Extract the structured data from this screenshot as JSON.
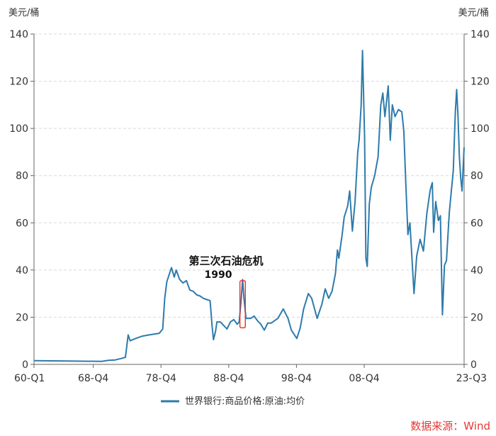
{
  "chart_data": {
    "type": "line",
    "y_unit_left": "美元/桶",
    "y_unit_right": "美元/桶",
    "ylim": [
      0,
      140
    ],
    "yticks": [
      "0",
      "20",
      "40",
      "60",
      "80",
      "100",
      "120",
      "140"
    ],
    "xlim": [
      1960.0,
      2023.5
    ],
    "x_ticks": [
      {
        "label": "60-Q1",
        "x": 1960.0
      },
      {
        "label": "68-Q4",
        "x": 1968.75
      },
      {
        "label": "78-Q4",
        "x": 1978.75
      },
      {
        "label": "88-Q4",
        "x": 1988.75
      },
      {
        "label": "98-Q4",
        "x": 1998.75
      },
      {
        "label": "08-Q4",
        "x": 2008.75
      },
      {
        "label": "23-Q3",
        "x": 2023.5
      }
    ],
    "grid": "horizontal-dashed",
    "legend_position": "bottom",
    "series": [
      {
        "name": "世界银行:商品价格:原油:均价",
        "color": "#2e7bab",
        "points": [
          [
            1960,
            1.6
          ],
          [
            1965,
            1.4
          ],
          [
            1970,
            1.3
          ],
          [
            1971,
            1.7
          ],
          [
            1972,
            1.9
          ],
          [
            1973.0,
            2.6
          ],
          [
            1973.5,
            3.0
          ],
          [
            1973.9,
            12.5
          ],
          [
            1974.2,
            10.0
          ],
          [
            1975,
            11.0
          ],
          [
            1976,
            12.0
          ],
          [
            1977,
            12.5
          ],
          [
            1978.5,
            13.2
          ],
          [
            1979.0,
            15.0
          ],
          [
            1979.3,
            28.0
          ],
          [
            1979.6,
            35.0
          ],
          [
            1980.0,
            38.5
          ],
          [
            1980.3,
            41.0
          ],
          [
            1980.7,
            37.0
          ],
          [
            1981.0,
            40.0
          ],
          [
            1981.5,
            36.0
          ],
          [
            1982.0,
            34.5
          ],
          [
            1982.5,
            35.5
          ],
          [
            1983.0,
            31.5
          ],
          [
            1983.5,
            31.0
          ],
          [
            1984.0,
            29.5
          ],
          [
            1984.5,
            29.0
          ],
          [
            1985.0,
            28.0
          ],
          [
            1985.5,
            27.5
          ],
          [
            1986.0,
            27.0
          ],
          [
            1986.3,
            16.0
          ],
          [
            1986.5,
            10.5
          ],
          [
            1986.8,
            14.0
          ],
          [
            1987.0,
            18.0
          ],
          [
            1987.5,
            18.0
          ],
          [
            1988.0,
            16.5
          ],
          [
            1988.5,
            15.0
          ],
          [
            1989.0,
            18.0
          ],
          [
            1989.5,
            19.0
          ],
          [
            1990.0,
            17.0
          ],
          [
            1990.3,
            18.0
          ],
          [
            1990.6,
            28.0
          ],
          [
            1990.8,
            36.0
          ],
          [
            1991.0,
            28.0
          ],
          [
            1991.3,
            19.5
          ],
          [
            1992.0,
            19.5
          ],
          [
            1992.5,
            20.5
          ],
          [
            1993.0,
            18.5
          ],
          [
            1993.5,
            17.0
          ],
          [
            1994.0,
            14.5
          ],
          [
            1994.5,
            17.5
          ],
          [
            1995.0,
            17.5
          ],
          [
            1996.0,
            19.5
          ],
          [
            1996.8,
            23.5
          ],
          [
            1997.5,
            19.5
          ],
          [
            1998.0,
            14.5
          ],
          [
            1998.8,
            11.0
          ],
          [
            1999.3,
            15.5
          ],
          [
            1999.8,
            23.5
          ],
          [
            2000.5,
            30.0
          ],
          [
            2001.0,
            28.0
          ],
          [
            2001.8,
            19.5
          ],
          [
            2002.5,
            25.5
          ],
          [
            2003.0,
            32.0
          ],
          [
            2003.5,
            28.0
          ],
          [
            2004.0,
            31.0
          ],
          [
            2004.5,
            38.5
          ],
          [
            2004.8,
            48.5
          ],
          [
            2005.0,
            45.0
          ],
          [
            2005.5,
            55.0
          ],
          [
            2005.8,
            62.5
          ],
          [
            2006.3,
            67.0
          ],
          [
            2006.6,
            73.5
          ],
          [
            2007.0,
            56.5
          ],
          [
            2007.4,
            69.0
          ],
          [
            2007.8,
            90.0
          ],
          [
            2008.0,
            95.0
          ],
          [
            2008.3,
            110.0
          ],
          [
            2008.5,
            133.0
          ],
          [
            2008.8,
            97.0
          ],
          [
            2009.0,
            45.0
          ],
          [
            2009.2,
            41.5
          ],
          [
            2009.5,
            68.0
          ],
          [
            2009.8,
            75.0
          ],
          [
            2010.3,
            80.0
          ],
          [
            2010.8,
            88.0
          ],
          [
            2011.2,
            110.0
          ],
          [
            2011.5,
            115.0
          ],
          [
            2011.8,
            105.0
          ],
          [
            2012.3,
            118.0
          ],
          [
            2012.6,
            95.0
          ],
          [
            2012.9,
            110.0
          ],
          [
            2013.3,
            105.0
          ],
          [
            2013.8,
            108.0
          ],
          [
            2014.3,
            107.0
          ],
          [
            2014.6,
            99.0
          ],
          [
            2014.9,
            76.0
          ],
          [
            2015.2,
            55.0
          ],
          [
            2015.5,
            60.0
          ],
          [
            2015.8,
            45.0
          ],
          [
            2016.1,
            30.0
          ],
          [
            2016.5,
            46.0
          ],
          [
            2017.0,
            53.0
          ],
          [
            2017.5,
            48.0
          ],
          [
            2018.0,
            64.0
          ],
          [
            2018.5,
            74.0
          ],
          [
            2018.8,
            77.0
          ],
          [
            2019.0,
            56.0
          ],
          [
            2019.3,
            69.0
          ],
          [
            2019.7,
            61.0
          ],
          [
            2020.0,
            63.0
          ],
          [
            2020.3,
            21.0
          ],
          [
            2020.6,
            42.0
          ],
          [
            2020.9,
            44.0
          ],
          [
            2021.3,
            64.0
          ],
          [
            2021.6,
            73.0
          ],
          [
            2021.9,
            82.0
          ],
          [
            2022.2,
            107.0
          ],
          [
            2022.4,
            116.5
          ],
          [
            2022.6,
            105.0
          ],
          [
            2022.8,
            88.0
          ],
          [
            2023.0,
            79.0
          ],
          [
            2023.2,
            73.5
          ],
          [
            2023.5,
            92.0
          ]
        ]
      }
    ],
    "annotations": [
      {
        "text": "第三次石油危机"
      },
      {
        "text": "1990"
      }
    ],
    "highlight_box": {
      "x_range": [
        1990.4,
        1991.2
      ],
      "y_range": [
        15.5,
        35.5
      ],
      "color": "#e53935"
    },
    "source": "数据来源：Wind"
  }
}
